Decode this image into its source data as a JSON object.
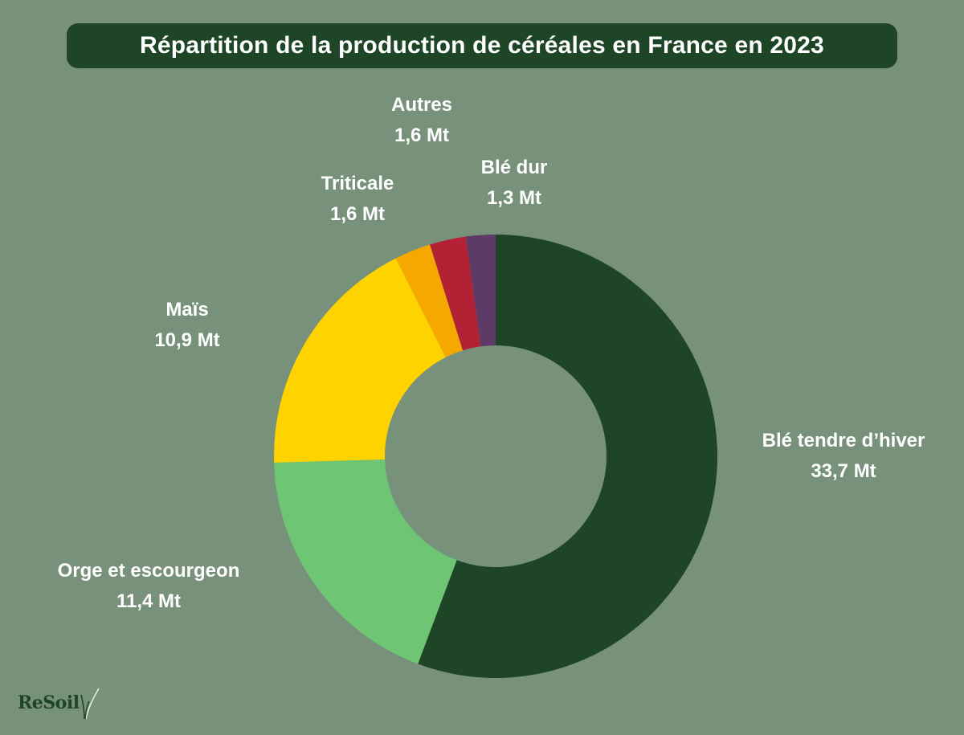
{
  "colors": {
    "background": "#77917b",
    "title_bg": "#1e4626",
    "text": "#ffffff"
  },
  "logo": {
    "text": "ReSoil",
    "icon": "grass-sprout-icon"
  },
  "chart_data": {
    "type": "pie",
    "variant": "donut",
    "title": "Répartition de la production de céréales en France en 2023",
    "unit": "Mt",
    "slices": [
      {
        "name": "Blé tendre d’hiver",
        "value": 33.7,
        "label": "33,7 Mt",
        "color": "#1e4626"
      },
      {
        "name": "Orge et escourgeon",
        "value": 11.4,
        "label": "11,4 Mt",
        "color": "#6ec573"
      },
      {
        "name": "Maïs",
        "value": 10.9,
        "label": "10,9 Mt",
        "color": "#ffd300"
      },
      {
        "name": "Triticale",
        "value": 1.6,
        "label": "1,6 Mt",
        "color": "#f5a900"
      },
      {
        "name": "Autres",
        "value": 1.6,
        "label": "1,6 Mt",
        "color": "#b22234"
      },
      {
        "name": "Blé dur",
        "value": 1.3,
        "label": "1,3 Mt",
        "color": "#5e3a66"
      }
    ],
    "start": "12 o'clock",
    "direction": "clockwise",
    "legend": "none (labels beside slices)"
  }
}
